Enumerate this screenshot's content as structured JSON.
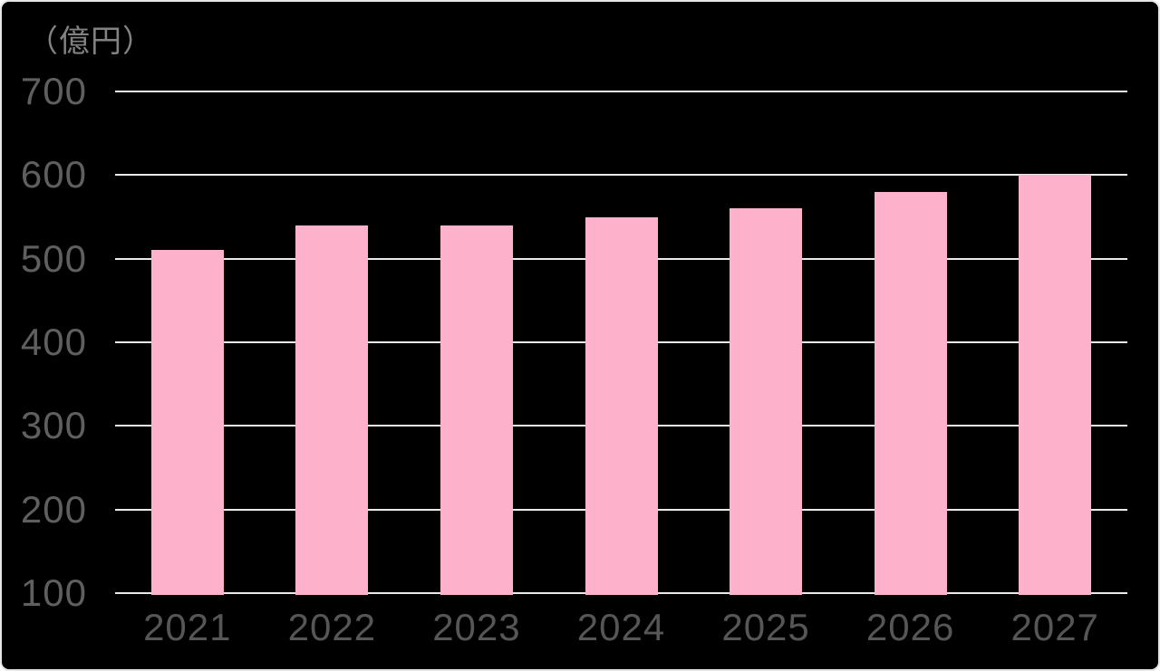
{
  "chart_data": {
    "type": "bar",
    "title": "",
    "unit_label": "（億円）",
    "categories": [
      "2021",
      "2022",
      "2023",
      "2024",
      "2025",
      "2026",
      "2027"
    ],
    "values": [
      510,
      540,
      540,
      550,
      560,
      580,
      600
    ],
    "xlabel": "",
    "ylabel": "億円",
    "ylim": [
      100,
      700
    ],
    "yticks": [
      700,
      600,
      500,
      400,
      300,
      200,
      100
    ],
    "baseline": 100,
    "grid": true,
    "legend": "none",
    "colors": {
      "background": "#000000",
      "bar": "#fdb1ca",
      "gridline": "#ebebeb",
      "y_axis_text": "#5f5f5f",
      "x_axis_text": "#565656",
      "unit_text": "#828282",
      "card_border": "#e6e6e6"
    }
  }
}
